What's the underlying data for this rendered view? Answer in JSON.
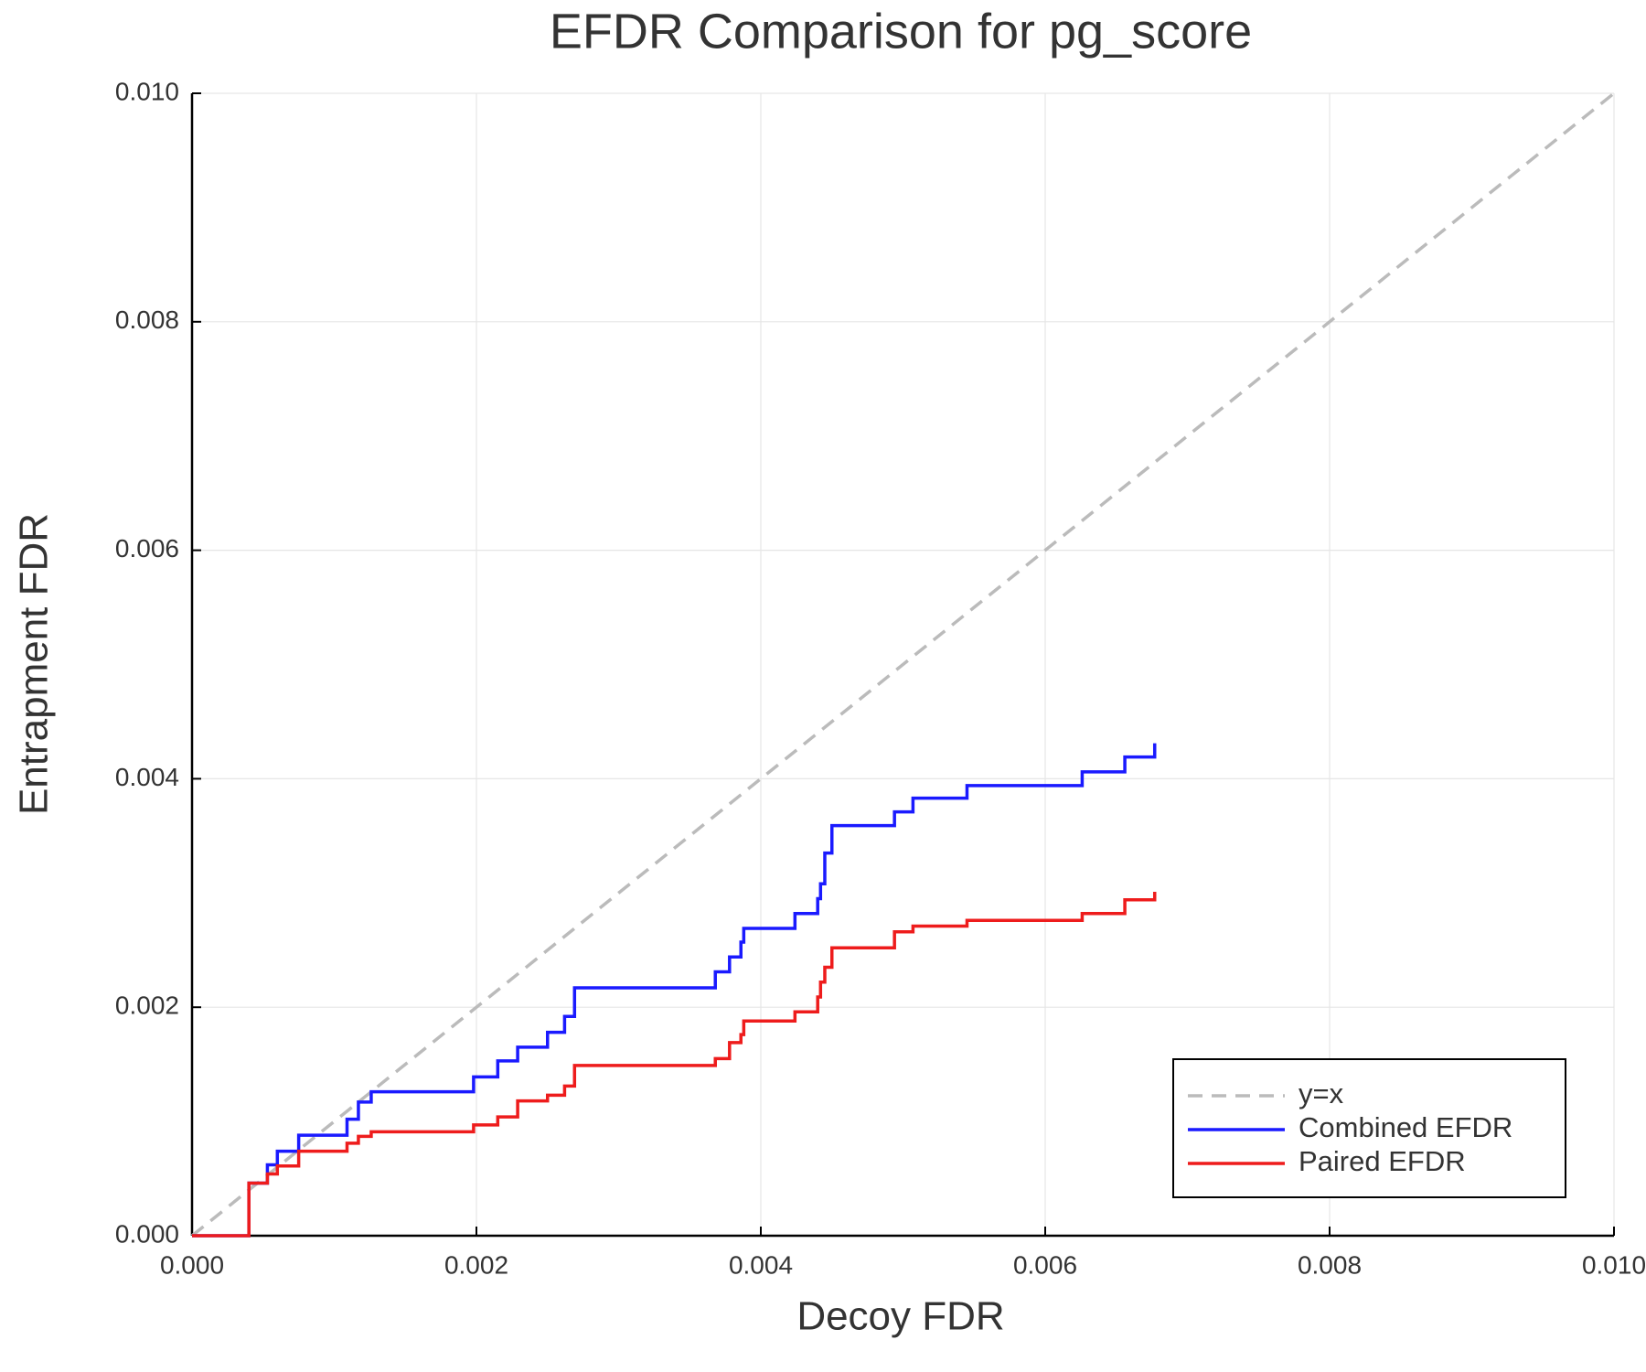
{
  "chart_data": {
    "type": "line",
    "title": "EFDR Comparison for pg_score",
    "x_label": "Decoy FDR",
    "y_label": "Entrapment FDR",
    "xlim": [
      0,
      0.01
    ],
    "ylim": [
      0,
      0.01
    ],
    "xticks": [
      {
        "value": 0,
        "label": "0.000"
      },
      {
        "value": 0.002,
        "label": "0.002"
      },
      {
        "value": 0.004,
        "label": "0.004"
      },
      {
        "value": 0.006,
        "label": "0.006"
      },
      {
        "value": 0.008,
        "label": "0.008"
      },
      {
        "value": 0.01,
        "label": "0.010"
      }
    ],
    "yticks": [
      {
        "value": 0,
        "label": "0.000"
      },
      {
        "value": 0.002,
        "label": "0.002"
      },
      {
        "value": 0.004,
        "label": "0.004"
      },
      {
        "value": 0.006,
        "label": "0.006"
      },
      {
        "value": 0.008,
        "label": "0.008"
      },
      {
        "value": 0.01,
        "label": "0.010"
      }
    ],
    "grid": true,
    "legend": "lower right",
    "series": [
      {
        "name": "y=x",
        "color": "#bbbbbb",
        "line_style": "dashed",
        "x": [
          0,
          0.01
        ],
        "values": [
          0,
          0.01
        ]
      },
      {
        "name": "Combined EFDR",
        "color": "#1a1aff",
        "line_style": "solid",
        "x": [
          0,
          0.0004,
          0.0004,
          0.00053,
          0.00053,
          0.0006,
          0.0006,
          0.00075,
          0.00075,
          0.00109,
          0.00109,
          0.00117,
          0.00117,
          0.00126,
          0.00126,
          0.00198,
          0.00198,
          0.00215,
          0.00215,
          0.00229,
          0.00229,
          0.0025,
          0.0025,
          0.00262,
          0.00262,
          0.00269,
          0.00269,
          0.00368,
          0.00368,
          0.00378,
          0.00378,
          0.00386,
          0.00386,
          0.00388,
          0.00388,
          0.00424,
          0.00424,
          0.0044,
          0.0044,
          0.00442,
          0.00442,
          0.00445,
          0.00445,
          0.0045,
          0.0045,
          0.00494,
          0.00494,
          0.00507,
          0.00507,
          0.00545,
          0.00545,
          0.00626,
          0.00626,
          0.00656,
          0.00656,
          0.00677,
          0.00677
        ],
        "values": [
          0,
          0,
          0.00046,
          0.00046,
          0.00062,
          0.00062,
          0.00074,
          0.00074,
          0.00088,
          0.00088,
          0.00102,
          0.00102,
          0.00117,
          0.00117,
          0.00126,
          0.00126,
          0.00139,
          0.00139,
          0.00153,
          0.00153,
          0.00165,
          0.00165,
          0.00178,
          0.00178,
          0.00192,
          0.00192,
          0.00217,
          0.00217,
          0.00231,
          0.00231,
          0.00244,
          0.00244,
          0.00257,
          0.00257,
          0.00269,
          0.00269,
          0.00282,
          0.00282,
          0.00295,
          0.00295,
          0.00308,
          0.00308,
          0.00335,
          0.00335,
          0.00359,
          0.00359,
          0.00371,
          0.00371,
          0.00383,
          0.00383,
          0.00394,
          0.00394,
          0.00406,
          0.00406,
          0.00419,
          0.00419,
          0.00431
        ]
      },
      {
        "name": "Paired EFDR",
        "color": "#ee1c1c",
        "line_style": "solid",
        "x": [
          0,
          0.0004,
          0.0004,
          0.00053,
          0.00053,
          0.0006,
          0.0006,
          0.00075,
          0.00075,
          0.00109,
          0.00109,
          0.00117,
          0.00117,
          0.00126,
          0.00126,
          0.00198,
          0.00198,
          0.00215,
          0.00215,
          0.00229,
          0.00229,
          0.0025,
          0.0025,
          0.00262,
          0.00262,
          0.00269,
          0.00269,
          0.00368,
          0.00368,
          0.00378,
          0.00378,
          0.00386,
          0.00386,
          0.00388,
          0.00388,
          0.00424,
          0.00424,
          0.0044,
          0.0044,
          0.00442,
          0.00442,
          0.00445,
          0.00445,
          0.0045,
          0.0045,
          0.00494,
          0.00494,
          0.00507,
          0.00507,
          0.00545,
          0.00545,
          0.00626,
          0.00626,
          0.00656,
          0.00656,
          0.00677,
          0.00677
        ],
        "values": [
          0,
          0,
          0.00046,
          0.00046,
          0.00054,
          0.00054,
          0.00061,
          0.00061,
          0.00074,
          0.00074,
          0.00081,
          0.00081,
          0.00087,
          0.00087,
          0.00091,
          0.00091,
          0.00097,
          0.00097,
          0.00104,
          0.00104,
          0.00118,
          0.00118,
          0.00123,
          0.00123,
          0.00131,
          0.00131,
          0.00149,
          0.00149,
          0.00155,
          0.00155,
          0.00169,
          0.00169,
          0.00176,
          0.00176,
          0.00188,
          0.00188,
          0.00196,
          0.00196,
          0.00209,
          0.00209,
          0.00222,
          0.00222,
          0.00235,
          0.00235,
          0.00252,
          0.00252,
          0.00266,
          0.00266,
          0.00271,
          0.00271,
          0.00276,
          0.00276,
          0.00282,
          0.00282,
          0.00294,
          0.00294,
          0.00301
        ]
      }
    ]
  }
}
